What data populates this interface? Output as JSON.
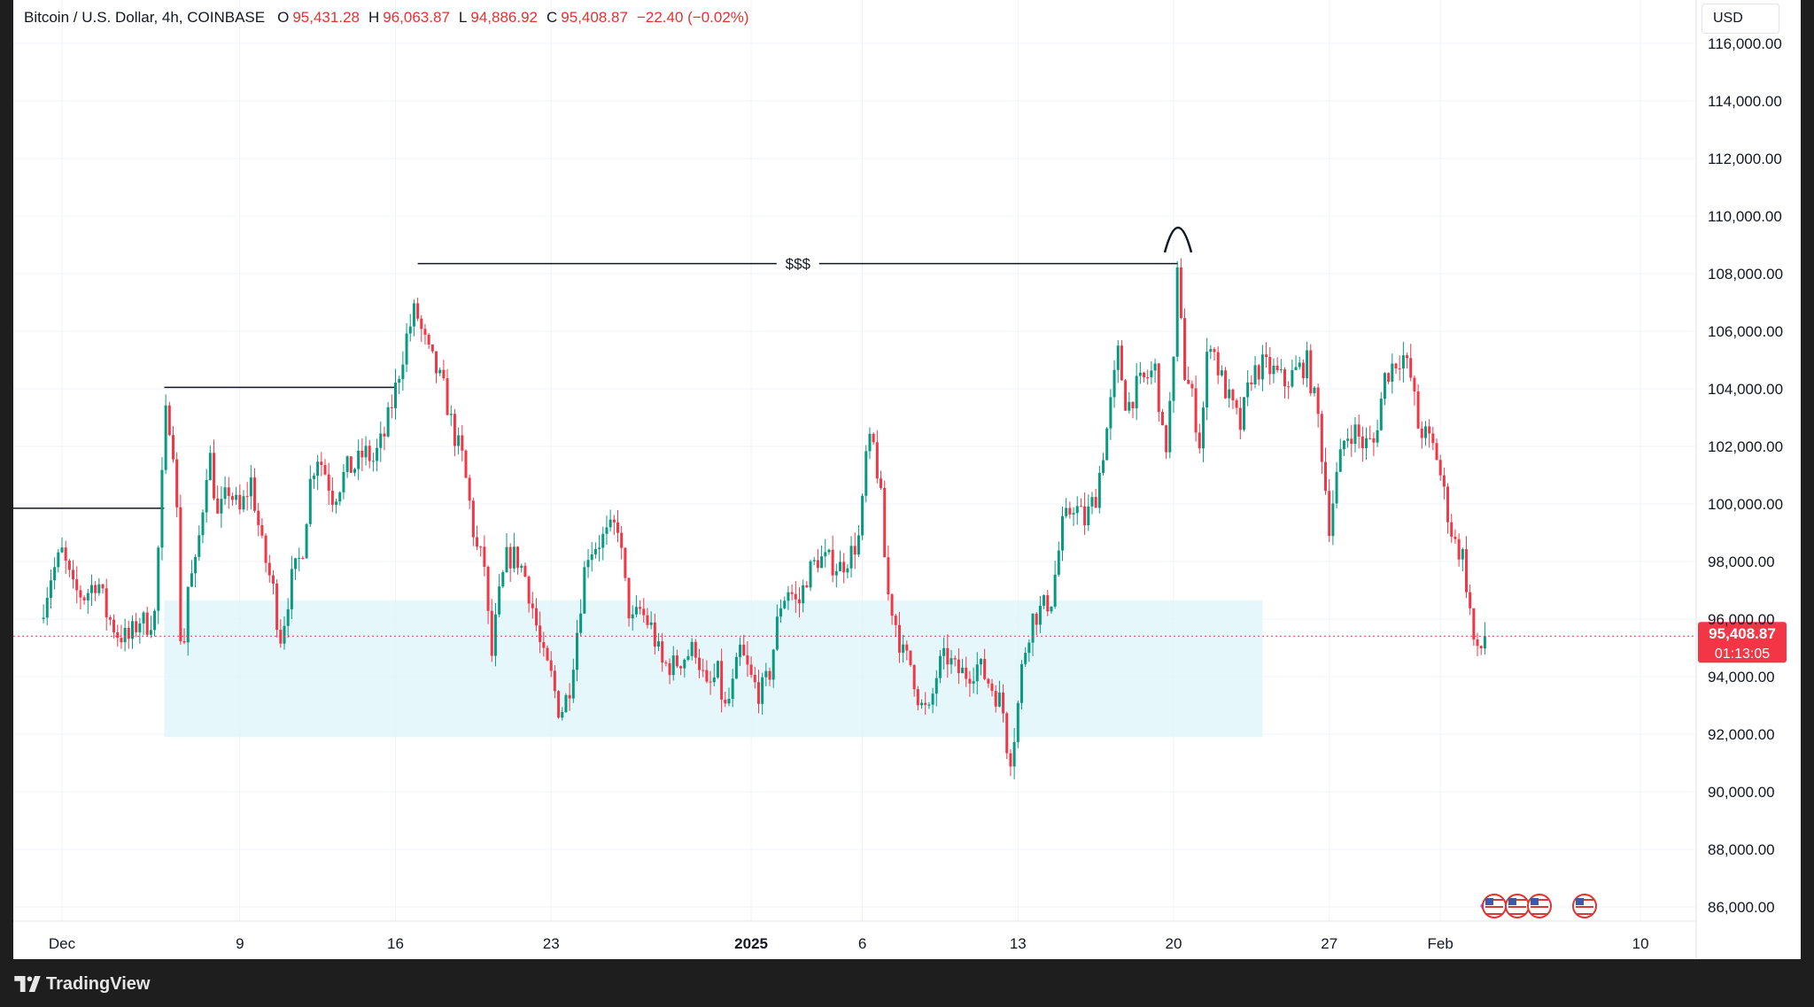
{
  "header": {
    "symbol": "Bitcoin / U.S. Dollar, 4h, COINBASE",
    "open_label": "O",
    "open": "95,431.28",
    "high_label": "H",
    "high": "96,063.87",
    "low_label": "L",
    "low": "94,886.92",
    "close_label": "C",
    "close": "95,408.87",
    "change": "−22.40 (−0.02%)"
  },
  "currency_button": "USD",
  "price_tag": {
    "price": "95,408.87",
    "countdown": "01:13:05"
  },
  "brand": "TradingView",
  "colors": {
    "up": "#089981",
    "down": "#f23645",
    "zone": "#dcf4f8",
    "grid": "#f0f3fa",
    "price_line": "#f23645",
    "axis_text": "#131722"
  },
  "annotations": {
    "liquidity_label": "$$$"
  },
  "chart_data": {
    "type": "candlestick",
    "interval": "4h",
    "ylim": [
      85000,
      116500
    ],
    "y_ticks": [
      "116,000.00",
      "114,000.00",
      "112,000.00",
      "110,000.00",
      "108,000.00",
      "106,000.00",
      "104,000.00",
      "102,000.00",
      "100,000.00",
      "98,000.00",
      "96,000.00",
      "94,000.00",
      "92,000.00",
      "90,000.00",
      "88,000.00",
      "86,000.00"
    ],
    "x_ticks": [
      {
        "label": "Dec",
        "day": 1,
        "bold": false
      },
      {
        "label": "9",
        "day": 9,
        "bold": false
      },
      {
        "label": "16",
        "day": 16,
        "bold": false
      },
      {
        "label": "23",
        "day": 23,
        "bold": false
      },
      {
        "label": "2025",
        "day": 32,
        "bold": true
      },
      {
        "label": "6",
        "day": 37,
        "bold": false
      },
      {
        "label": "13",
        "day": 44,
        "bold": false
      },
      {
        "label": "20",
        "day": 51,
        "bold": false
      },
      {
        "label": "27",
        "day": 58,
        "bold": false
      },
      {
        "label": "Feb",
        "day": 63,
        "bold": false
      },
      {
        "label": "10",
        "day": 72,
        "bold": false
      }
    ],
    "anchors": [
      [
        0.0,
        96000
      ],
      [
        0.5,
        97500
      ],
      [
        1.0,
        98300
      ],
      [
        1.5,
        97000
      ],
      [
        2.0,
        96800
      ],
      [
        2.6,
        97400
      ],
      [
        3.0,
        96200
      ],
      [
        3.5,
        95500
      ],
      [
        4.0,
        95300
      ],
      [
        4.5,
        96000
      ],
      [
        4.8,
        95800
      ],
      [
        5.2,
        96200
      ],
      [
        5.4,
        99500
      ],
      [
        5.7,
        103500
      ],
      [
        6.0,
        102000
      ],
      [
        6.2,
        99200
      ],
      [
        6.4,
        93600
      ],
      [
        6.6,
        97000
      ],
      [
        7.0,
        97800
      ],
      [
        7.3,
        99700
      ],
      [
        7.6,
        102000
      ],
      [
        8.0,
        99500
      ],
      [
        8.5,
        100500
      ],
      [
        9.0,
        99700
      ],
      [
        9.5,
        100800
      ],
      [
        10.0,
        98500
      ],
      [
        10.5,
        97000
      ],
      [
        10.8,
        95300
      ],
      [
        11.0,
        96000
      ],
      [
        11.3,
        97300
      ],
      [
        11.8,
        98300
      ],
      [
        12.2,
        101000
      ],
      [
        12.5,
        101700
      ],
      [
        12.8,
        101200
      ],
      [
        13.2,
        100200
      ],
      [
        13.8,
        101200
      ],
      [
        14.2,
        101300
      ],
      [
        14.6,
        101800
      ],
      [
        15.0,
        101500
      ],
      [
        15.5,
        102400
      ],
      [
        16.0,
        104000
      ],
      [
        16.5,
        105800
      ],
      [
        16.9,
        106800
      ],
      [
        17.2,
        105900
      ],
      [
        17.5,
        105200
      ],
      [
        17.8,
        104700
      ],
      [
        18.2,
        103900
      ],
      [
        18.6,
        102500
      ],
      [
        19.0,
        101600
      ],
      [
        19.3,
        100200
      ],
      [
        19.6,
        98500
      ],
      [
        20.0,
        97900
      ],
      [
        20.3,
        94500
      ],
      [
        20.6,
        96500
      ],
      [
        21.0,
        98100
      ],
      [
        21.4,
        98200
      ],
      [
        21.8,
        97600
      ],
      [
        22.2,
        96300
      ],
      [
        22.6,
        94700
      ],
      [
        23.0,
        94000
      ],
      [
        23.4,
        92700
      ],
      [
        23.8,
        93500
      ],
      [
        24.2,
        95800
      ],
      [
        24.6,
        98300
      ],
      [
        25.0,
        98600
      ],
      [
        25.5,
        98900
      ],
      [
        26.0,
        99300
      ],
      [
        26.3,
        97300
      ],
      [
        26.6,
        95800
      ],
      [
        27.0,
        96300
      ],
      [
        27.5,
        95700
      ],
      [
        28.0,
        94400
      ],
      [
        28.5,
        94400
      ],
      [
        29.0,
        94700
      ],
      [
        29.5,
        95000
      ],
      [
        30.0,
        93500
      ],
      [
        30.5,
        94100
      ],
      [
        30.8,
        92800
      ],
      [
        31.1,
        93400
      ],
      [
        31.5,
        94900
      ],
      [
        32.0,
        93900
      ],
      [
        32.4,
        93400
      ],
      [
        32.8,
        94000
      ],
      [
        33.3,
        96500
      ],
      [
        33.7,
        97100
      ],
      [
        34.1,
        96400
      ],
      [
        34.5,
        97500
      ],
      [
        35.0,
        98100
      ],
      [
        35.5,
        98000
      ],
      [
        36.0,
        97800
      ],
      [
        36.5,
        98300
      ],
      [
        36.9,
        98900
      ],
      [
        37.2,
        102000
      ],
      [
        37.5,
        102000
      ],
      [
        37.8,
        100500
      ],
      [
        38.1,
        97000
      ],
      [
        38.4,
        96200
      ],
      [
        38.8,
        94800
      ],
      [
        39.2,
        94400
      ],
      [
        39.6,
        93000
      ],
      [
        40.0,
        92700
      ],
      [
        40.4,
        94300
      ],
      [
        40.8,
        94700
      ],
      [
        41.2,
        94200
      ],
      [
        41.7,
        94100
      ],
      [
        42.2,
        94400
      ],
      [
        42.7,
        93800
      ],
      [
        43.3,
        93000
      ],
      [
        43.6,
        91000
      ],
      [
        43.9,
        92300
      ],
      [
        44.2,
        94500
      ],
      [
        44.6,
        96000
      ],
      [
        45.0,
        96300
      ],
      [
        45.5,
        96700
      ],
      [
        46.0,
        99200
      ],
      [
        46.5,
        100000
      ],
      [
        47.0,
        99400
      ],
      [
        47.5,
        100300
      ],
      [
        48.0,
        102600
      ],
      [
        48.5,
        105200
      ],
      [
        48.9,
        103300
      ],
      [
        49.3,
        104000
      ],
      [
        49.8,
        104400
      ],
      [
        50.2,
        104700
      ],
      [
        50.6,
        101500
      ],
      [
        51.0,
        104800
      ],
      [
        51.2,
        108500
      ],
      [
        51.5,
        104500
      ],
      [
        51.8,
        103800
      ],
      [
        52.2,
        102000
      ],
      [
        52.6,
        106000
      ],
      [
        53.0,
        104700
      ],
      [
        53.5,
        103600
      ],
      [
        54.0,
        102700
      ],
      [
        54.5,
        104500
      ],
      [
        55.0,
        104800
      ],
      [
        55.5,
        104600
      ],
      [
        56.0,
        104200
      ],
      [
        56.5,
        104600
      ],
      [
        57.0,
        104900
      ],
      [
        57.5,
        103000
      ],
      [
        58.0,
        99300
      ],
      [
        58.3,
        100800
      ],
      [
        58.7,
        102300
      ],
      [
        59.1,
        102600
      ],
      [
        59.5,
        102100
      ],
      [
        60.0,
        102100
      ],
      [
        60.5,
        104400
      ],
      [
        60.9,
        104900
      ],
      [
        61.3,
        105200
      ],
      [
        61.7,
        104300
      ],
      [
        62.0,
        102700
      ],
      [
        62.4,
        102300
      ],
      [
        62.8,
        101800
      ],
      [
        63.2,
        100200
      ],
      [
        63.6,
        98700
      ],
      [
        64.0,
        98200
      ],
      [
        64.3,
        96500
      ],
      [
        64.6,
        94600
      ],
      [
        64.8,
        94900
      ],
      [
        65.0,
        95400
      ]
    ],
    "levels": [
      {
        "from_day": -1.5,
        "to_day": 5.6,
        "price": 99850
      },
      {
        "from_day": 5.6,
        "to_day": 16.0,
        "price": 104050
      },
      {
        "from_day": 17.0,
        "to_day": 51.2,
        "price": 108350
      }
    ],
    "zone": {
      "from_day": 5.6,
      "to_day": 55.0,
      "low": 91900,
      "high": 96650
    },
    "last_price": 95408.87
  }
}
